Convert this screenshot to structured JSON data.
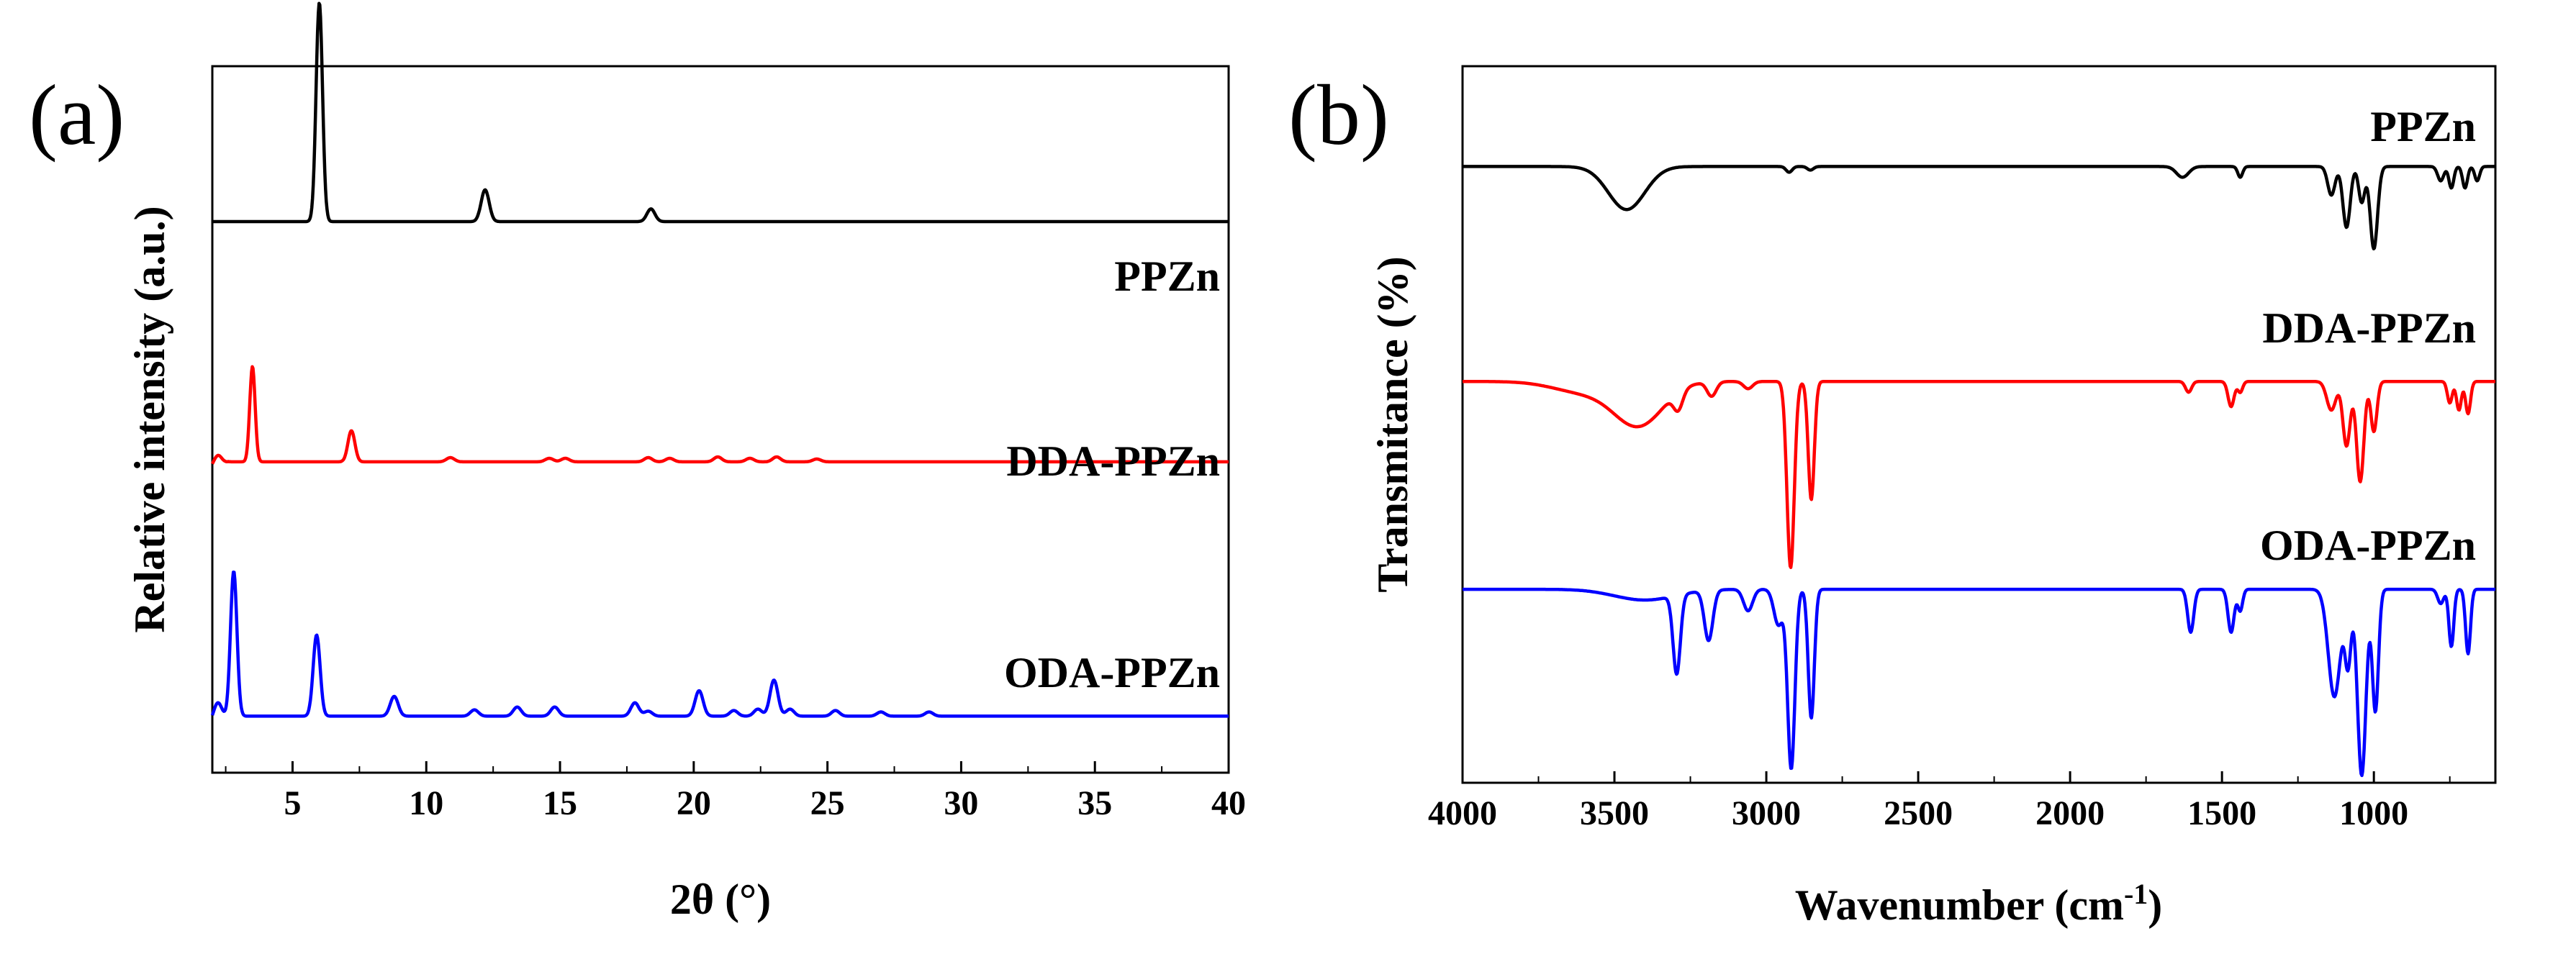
{
  "figure": {
    "panels": [
      "(a)",
      "(b)"
    ]
  },
  "chart_data": [
    {
      "panel": "(a)",
      "type": "line",
      "title": "",
      "xlabel": "2θ (°)",
      "ylabel": "Relative intensity (a.u.)",
      "xlim": [
        2,
        40
      ],
      "xticks": [
        5,
        10,
        15,
        20,
        25,
        30,
        35,
        40
      ],
      "xtick_labels": [
        "5",
        "10",
        "15",
        "20",
        "25",
        "30",
        "35",
        "40"
      ],
      "ylim": [
        0,
        100
      ],
      "yticks_shown": false,
      "legend": "inline labels at right",
      "series": [
        {
          "name": "PPZn",
          "color": "#000000",
          "baseline": 78,
          "peaks": [
            [
              6.0,
              31,
              0.12
            ],
            [
              12.2,
              4.5,
              0.15
            ],
            [
              18.4,
              1.8,
              0.15
            ]
          ]
        },
        {
          "name": "DDA-PPZn",
          "color": "#ff0000",
          "baseline": 44,
          "peaks": [
            [
              2.2,
              1.5,
              0.15
            ],
            [
              3.5,
              13.5,
              0.1
            ],
            [
              7.2,
              4.4,
              0.13
            ],
            [
              10.9,
              0.6,
              0.15
            ],
            [
              14.6,
              0.5,
              0.15
            ],
            [
              15.2,
              0.5,
              0.15
            ],
            [
              18.3,
              0.6,
              0.15
            ],
            [
              19.1,
              0.5,
              0.15
            ],
            [
              20.9,
              0.7,
              0.15
            ],
            [
              22.1,
              0.5,
              0.15
            ],
            [
              23.1,
              0.7,
              0.15
            ],
            [
              24.6,
              0.4,
              0.15
            ]
          ]
        },
        {
          "name": "ODA-PPZn",
          "color": "#0000ff",
          "baseline": 8,
          "peaks": [
            [
              2.2,
              2.5,
              0.15
            ],
            [
              2.8,
              20.5,
              0.12
            ],
            [
              5.9,
              11.5,
              0.13
            ],
            [
              8.8,
              2.8,
              0.15
            ],
            [
              11.8,
              0.9,
              0.15
            ],
            [
              13.4,
              1.3,
              0.15
            ],
            [
              14.8,
              1.3,
              0.15
            ],
            [
              17.8,
              1.9,
              0.15
            ],
            [
              18.3,
              0.7,
              0.15
            ],
            [
              20.2,
              3.6,
              0.15
            ],
            [
              21.5,
              0.8,
              0.15
            ],
            [
              22.4,
              1.0,
              0.15
            ],
            [
              23.0,
              5.1,
              0.15
            ],
            [
              23.6,
              1.0,
              0.15
            ],
            [
              25.3,
              0.8,
              0.15
            ],
            [
              27.0,
              0.6,
              0.15
            ],
            [
              28.8,
              0.6,
              0.15
            ]
          ]
        }
      ]
    },
    {
      "panel": "(b)",
      "type": "line",
      "title": "",
      "xlabel": "Wavenumber (cm",
      "xlabel_superscript": "-1",
      "xlabel_suffix": ")",
      "ylabel": "Transmitance (%)",
      "xlim": [
        4000,
        600
      ],
      "xticks": [
        4000,
        3500,
        3000,
        2500,
        2000,
        1500,
        1000
      ],
      "xtick_labels": [
        "4000",
        "3500",
        "3000",
        "2500",
        "2000",
        "1500",
        "1000"
      ],
      "ylim": [
        0,
        100
      ],
      "yticks_shown": false,
      "legend": "inline labels at right",
      "series": [
        {
          "name": "PPZn",
          "color": "#000000",
          "baseline": 86,
          "bands": [
            [
              3460,
              6,
              60
            ],
            [
              2925,
              0.8,
              10
            ],
            [
              2855,
              0.5,
              10
            ],
            [
              1630,
              1.5,
              20
            ],
            [
              1440,
              1.5,
              8
            ],
            [
              1140,
              4,
              12
            ],
            [
              1090,
              8.5,
              12
            ],
            [
              1040,
              5,
              10
            ],
            [
              1000,
              11.5,
              12
            ],
            [
              780,
              2,
              10
            ],
            [
              745,
              3,
              8
            ],
            [
              700,
              3,
              8
            ],
            [
              660,
              2,
              8
            ]
          ]
        },
        {
          "name": "DDA-PPZn",
          "color": "#ff0000",
          "baseline": 56,
          "bands": [
            [
              3600,
              1.5,
              100
            ],
            [
              3420,
              6,
              80
            ],
            [
              3290,
              2.5,
              15
            ],
            [
              3180,
              2,
              15
            ],
            [
              3060,
              1,
              15
            ],
            [
              2920,
              26,
              12
            ],
            [
              2852,
              16.5,
              10
            ],
            [
              1610,
              1.5,
              10
            ],
            [
              1470,
              3.5,
              10
            ],
            [
              1440,
              1.5,
              8
            ],
            [
              1140,
              4,
              15
            ],
            [
              1090,
              9,
              12
            ],
            [
              1045,
              14,
              12
            ],
            [
              1000,
              7,
              10
            ],
            [
              750,
              3,
              8
            ],
            [
              720,
              4,
              8
            ],
            [
              690,
              4.5,
              8
            ]
          ]
        },
        {
          "name": "ODA-PPZn",
          "color": "#0000ff",
          "baseline": 27,
          "bands": [
            [
              3400,
              1.5,
              100
            ],
            [
              3295,
              11,
              12
            ],
            [
              3190,
              7,
              14
            ],
            [
              3060,
              3,
              15
            ],
            [
              2960,
              5,
              15
            ],
            [
              2918,
              25,
              12
            ],
            [
              2852,
              18,
              10
            ],
            [
              1603,
              6,
              10
            ],
            [
              1470,
              6,
              10
            ],
            [
              1440,
              3,
              8
            ],
            [
              1130,
              15,
              20
            ],
            [
              1085,
              10,
              10
            ],
            [
              1040,
              26,
              14
            ],
            [
              995,
              17,
              10
            ],
            [
              780,
              2,
              10
            ],
            [
              745,
              8,
              8
            ],
            [
              690,
              9,
              8
            ]
          ]
        }
      ]
    }
  ]
}
